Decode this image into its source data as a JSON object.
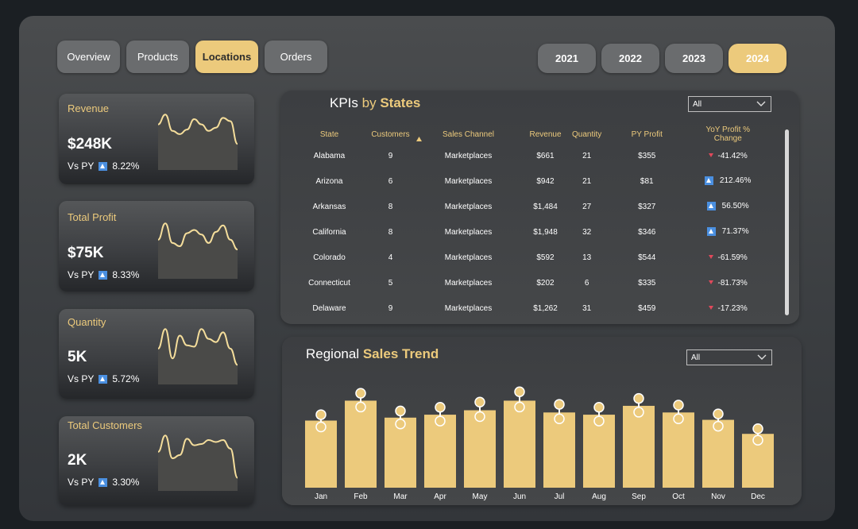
{
  "nav": {
    "tabs": [
      {
        "label": "Overview"
      },
      {
        "label": "Products"
      },
      {
        "label": "Locations"
      },
      {
        "label": "Orders"
      }
    ],
    "active_tab": "Locations"
  },
  "years": {
    "items": [
      "2021",
      "2022",
      "2023",
      "2024"
    ],
    "active": "2024"
  },
  "cards": [
    {
      "title": "Revenue",
      "value": "$248K",
      "vs_label": "Vs PY",
      "change": "8.22%",
      "trend": [
        70,
        85,
        60,
        55,
        62,
        78,
        70,
        60,
        65,
        80,
        75,
        40
      ]
    },
    {
      "title": "Total Profit",
      "value": "$75K",
      "vs_label": "Vs PY",
      "change": "8.33%",
      "trend": [
        60,
        85,
        55,
        50,
        70,
        75,
        68,
        55,
        72,
        82,
        60,
        45
      ]
    },
    {
      "title": "Quantity",
      "value": "5K",
      "vs_label": "Vs PY",
      "change": "5.72%",
      "trend": [
        55,
        85,
        40,
        75,
        60,
        58,
        85,
        70,
        65,
        80,
        55,
        30
      ]
    },
    {
      "title": "Total Customers",
      "value": "2K",
      "vs_label": "Vs PY",
      "change": "3.30%",
      "trend": [
        60,
        85,
        50,
        55,
        80,
        70,
        72,
        78,
        75,
        78,
        65,
        20
      ]
    }
  ],
  "kpi_table": {
    "title_part1": "KPIs",
    "title_part2": "by",
    "title_part3": "States",
    "filter_value": "All",
    "columns": [
      "State",
      "Customers",
      "Sales Channel",
      "Revenue",
      "Quantity",
      "PY Profit",
      "YoY Profit % Change"
    ],
    "rows": [
      {
        "state": "Alabama",
        "customers": "9",
        "channel": "Marketplaces",
        "revenue": "$661",
        "quantity": "21",
        "py_profit": "$355",
        "yoy": "-41.42%",
        "dir": "down"
      },
      {
        "state": "Arizona",
        "customers": "6",
        "channel": "Marketplaces",
        "revenue": "$942",
        "quantity": "21",
        "py_profit": "$81",
        "yoy": "212.46%",
        "dir": "up"
      },
      {
        "state": "Arkansas",
        "customers": "8",
        "channel": "Marketplaces",
        "revenue": "$1,484",
        "quantity": "27",
        "py_profit": "$327",
        "yoy": "56.50%",
        "dir": "up"
      },
      {
        "state": "California",
        "customers": "8",
        "channel": "Marketplaces",
        "revenue": "$1,948",
        "quantity": "32",
        "py_profit": "$346",
        "yoy": "71.37%",
        "dir": "up"
      },
      {
        "state": "Colorado",
        "customers": "4",
        "channel": "Marketplaces",
        "revenue": "$592",
        "quantity": "13",
        "py_profit": "$544",
        "yoy": "-61.59%",
        "dir": "down"
      },
      {
        "state": "Connecticut",
        "customers": "5",
        "channel": "Marketplaces",
        "revenue": "$202",
        "quantity": "6",
        "py_profit": "$335",
        "yoy": "-81.73%",
        "dir": "down"
      },
      {
        "state": "Delaware",
        "customers": "9",
        "channel": "Marketplaces",
        "revenue": "$1,262",
        "quantity": "31",
        "py_profit": "$459",
        "yoy": "-17.23%",
        "dir": "down"
      }
    ]
  },
  "sales_trend": {
    "title_part1": "Regional",
    "title_part2": "Sales Trend",
    "filter_value": "All"
  },
  "chart_data": {
    "type": "bar",
    "title": "Regional Sales Trend",
    "categories": [
      "Jan",
      "Feb",
      "Mar",
      "Apr",
      "May",
      "Jun",
      "Jul",
      "Aug",
      "Sep",
      "Oct",
      "Nov",
      "Dec"
    ],
    "values": [
      91,
      118,
      95,
      99,
      105,
      118,
      102,
      99,
      111,
      102,
      92,
      73
    ],
    "markers_prev_year": [
      99,
      128,
      104,
      109,
      116,
      130,
      113,
      109,
      121,
      112,
      100,
      80
    ],
    "xlabel": "",
    "ylabel": "",
    "ylim": [
      0,
      140
    ],
    "grid": false
  },
  "colors": {
    "accent": "#ecca7c",
    "up": "#4a8fe0",
    "down": "#e0495b"
  }
}
